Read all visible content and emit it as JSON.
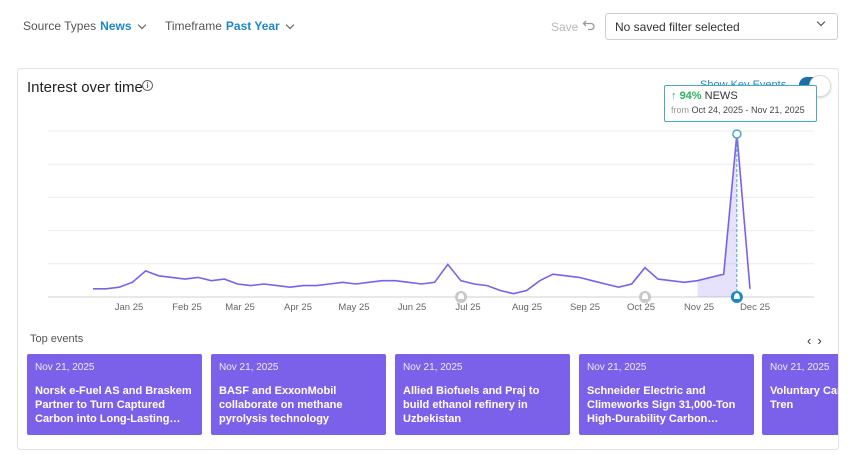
{
  "filters": {
    "source_label": "Source Types",
    "source_value": "News",
    "timeframe_label": "Timeframe",
    "timeframe_value": "Past Year",
    "save_label": "Save",
    "saved_filter_value": "No saved filter selected"
  },
  "card": {
    "title": "Interest over time",
    "key_events_label": "Show Key Events",
    "key_events_on": true
  },
  "tooltip": {
    "percent": "94%",
    "series": "NEWS",
    "from_label": "from",
    "range": "Oct 24, 2025 - Nov 21, 2025"
  },
  "chart_data": {
    "type": "line",
    "x_ticks": [
      "Jan 25",
      "Feb 25",
      "Mar 25",
      "Apr 25",
      "May 25",
      "Jun 25",
      "Jul 25",
      "Aug 25",
      "Sep 25",
      "Oct 25",
      "Nov 25",
      "Dec 25"
    ],
    "series": [
      {
        "values": [
          5,
          5,
          6,
          9,
          16,
          13,
          12,
          11,
          12,
          10,
          11,
          8,
          7,
          8,
          7,
          6,
          7,
          7,
          8,
          9,
          8,
          9,
          10,
          10,
          9,
          8,
          9,
          20,
          10,
          8,
          7,
          4,
          2,
          4,
          10,
          14,
          13,
          12,
          10,
          8,
          6,
          8,
          18,
          11,
          10,
          9,
          10,
          12,
          14,
          100,
          5
        ]
      }
    ],
    "highlight_index": 49,
    "ylim": [
      0,
      100
    ],
    "color": "#7b61ea",
    "key_event_markers": [
      "Jul 25",
      "Oct 25",
      "Nov 25"
    ]
  },
  "top_events": {
    "label": "Top events",
    "prev": "‹",
    "next": "›",
    "items": [
      {
        "date": "Nov 21, 2025",
        "title": "Norsk e-Fuel AS and Braskem Partner to Turn Captured Carbon into Long-Lasting…"
      },
      {
        "date": "Nov 21, 2025",
        "title": "BASF and ExxonMobil collaborate on methane pyrolysis technology"
      },
      {
        "date": "Nov 21, 2025",
        "title": "Allied Biofuels and Praj to build ethanol refinery in Uzbekistan"
      },
      {
        "date": "Nov 21, 2025",
        "title": "Schneider Electric and Climeworks Sign 31,000-Ton High-Durability Carbon…"
      },
      {
        "date": "Nov 21, 2025",
        "title": "Voluntary Carbon Market: Tren"
      }
    ]
  }
}
